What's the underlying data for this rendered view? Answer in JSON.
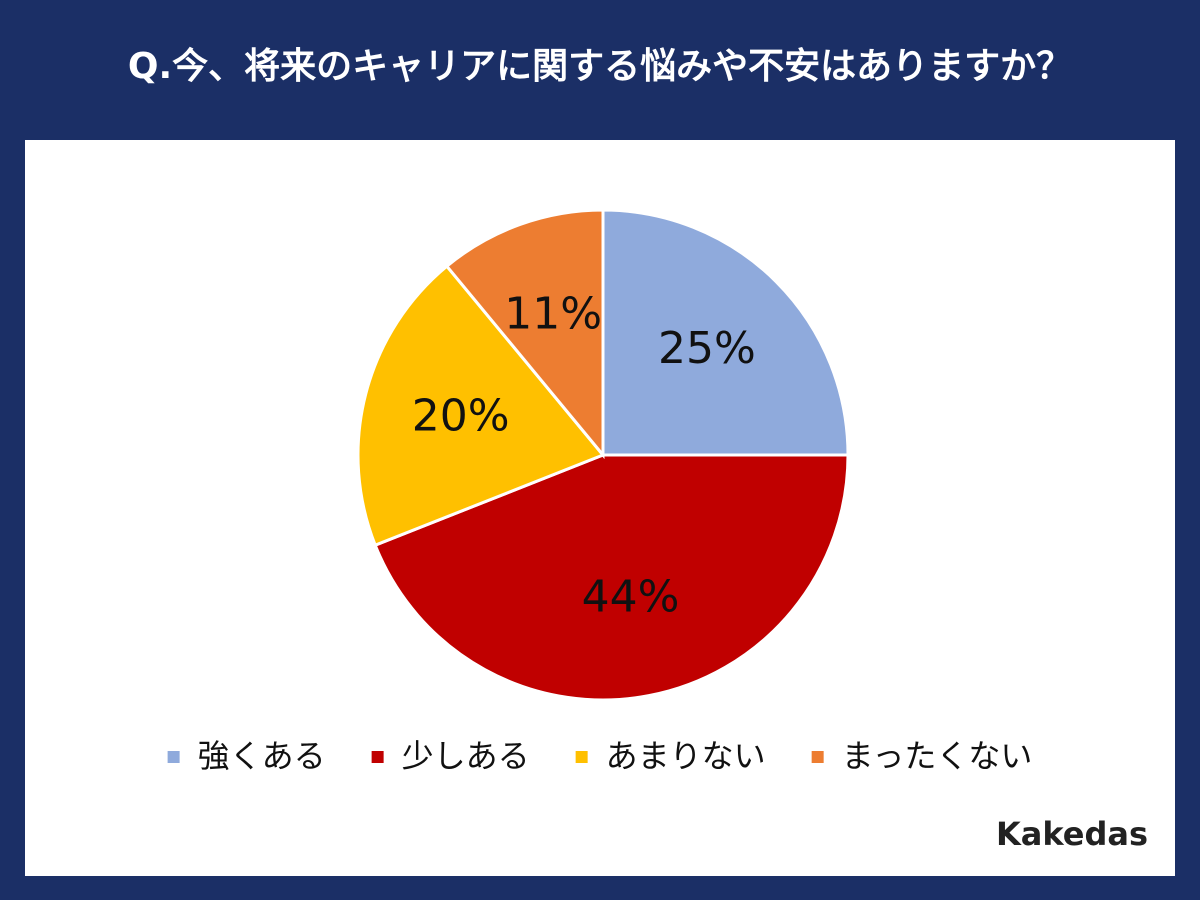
{
  "chart_data": {
    "type": "pie",
    "title": "Q.今、将来のキャリアに関する悩みや不安はありますか？",
    "categories": [
      "強くある",
      "少しある",
      "あまりない",
      "まったくない"
    ],
    "values": [
      25,
      44,
      20,
      11
    ],
    "value_labels": [
      "25%",
      "44%",
      "20%",
      "11%"
    ],
    "colors": [
      "#8faadc",
      "#c00000",
      "#ffc000",
      "#ed7d31"
    ],
    "legend": "bottom"
  },
  "brand": "Kakedas"
}
